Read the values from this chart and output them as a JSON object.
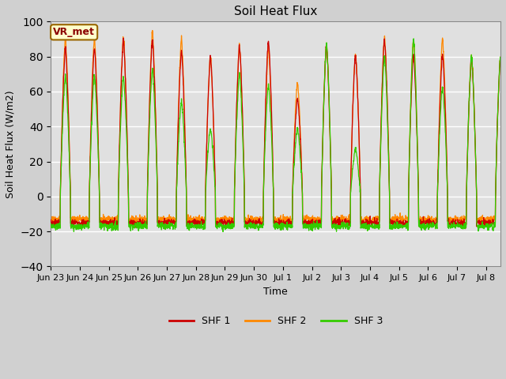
{
  "title": "Soil Heat Flux",
  "ylabel": "Soil Heat Flux (W/m2)",
  "xlabel": "Time",
  "ylim": [
    -40,
    100
  ],
  "yticks": [
    -40,
    -20,
    0,
    20,
    40,
    60,
    80,
    100
  ],
  "legend_labels": [
    "SHF 1",
    "SHF 2",
    "SHF 3"
  ],
  "colors": [
    "#cc0000",
    "#ff8800",
    "#33cc00"
  ],
  "annotation_text": "VR_met",
  "annotation_box_facecolor": "#ffffcc",
  "annotation_box_edgecolor": "#996600",
  "annotation_text_color": "#8b0000",
  "x_tick_labels": [
    "Jun 23",
    "Jun 24",
    "Jun 25",
    "Jun 26",
    "Jun 27",
    "Jun 28",
    "Jun 29",
    "Jun 30",
    "Jul 1",
    "Jul 2",
    "Jul 3",
    "Jul 4",
    "Jul 5",
    "Jul 6",
    "Jul 7",
    "Jul 8"
  ],
  "plot_bg_color": "#e0e0e0",
  "grid_color": "#ffffff",
  "fig_bg_color": "#d0d0d0",
  "n_days": 15.5,
  "points_per_day": 144
}
